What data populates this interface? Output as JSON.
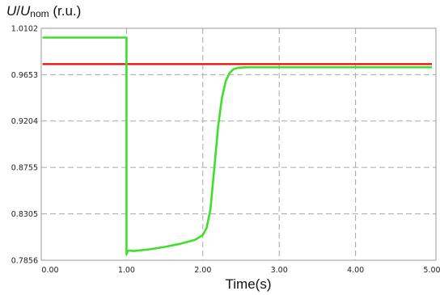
{
  "chart_data": {
    "type": "line",
    "ylabel": {
      "main": "U",
      "sep": "/",
      "base": "U",
      "sub": "nom",
      "unit": " (r.u.)"
    },
    "xlabel": "Time(s)",
    "xlim": [
      0.0,
      5.0
    ],
    "ylim": [
      0.7856,
      1.0102
    ],
    "x_ticks": [
      {
        "v": 0.0,
        "label": "0.00"
      },
      {
        "v": 1.0,
        "label": "1.00"
      },
      {
        "v": 2.0,
        "label": "2.00"
      },
      {
        "v": 3.0,
        "label": "3.00"
      },
      {
        "v": 4.0,
        "label": "4.00"
      },
      {
        "v": 5.0,
        "label": "5.00"
      }
    ],
    "y_ticks": [
      {
        "v": 0.7856,
        "label": "0.7856"
      },
      {
        "v": 0.8305,
        "label": "0.8305"
      },
      {
        "v": 0.8755,
        "label": "0.8755"
      },
      {
        "v": 0.9204,
        "label": "0.9204"
      },
      {
        "v": 0.9653,
        "label": "0.9653"
      },
      {
        "v": 1.0102,
        "label": "1.0102"
      }
    ],
    "grid": true,
    "series": [
      {
        "color": "#e81515",
        "x": [
          -0.1,
          5.0
        ],
        "y": [
          0.9755,
          0.9755
        ]
      },
      {
        "color": "#3ee02a",
        "x": [
          -0.1,
          1.0,
          1.0,
          1.02,
          1.1,
          1.3,
          1.5,
          1.7,
          1.9,
          2.0,
          2.05,
          2.1,
          2.15,
          2.2,
          2.25,
          2.3,
          2.35,
          2.4,
          2.45,
          2.5,
          2.6,
          2.8,
          3.0,
          4.0,
          5.0
        ],
        "y": [
          1.0012,
          1.0012,
          0.7915,
          0.795,
          0.7945,
          0.7962,
          0.7985,
          0.8015,
          0.8055,
          0.81,
          0.817,
          0.835,
          0.875,
          0.915,
          0.943,
          0.959,
          0.967,
          0.9705,
          0.9718,
          0.9722,
          0.9725,
          0.9725,
          0.9725,
          0.9725,
          0.9725
        ]
      }
    ]
  }
}
